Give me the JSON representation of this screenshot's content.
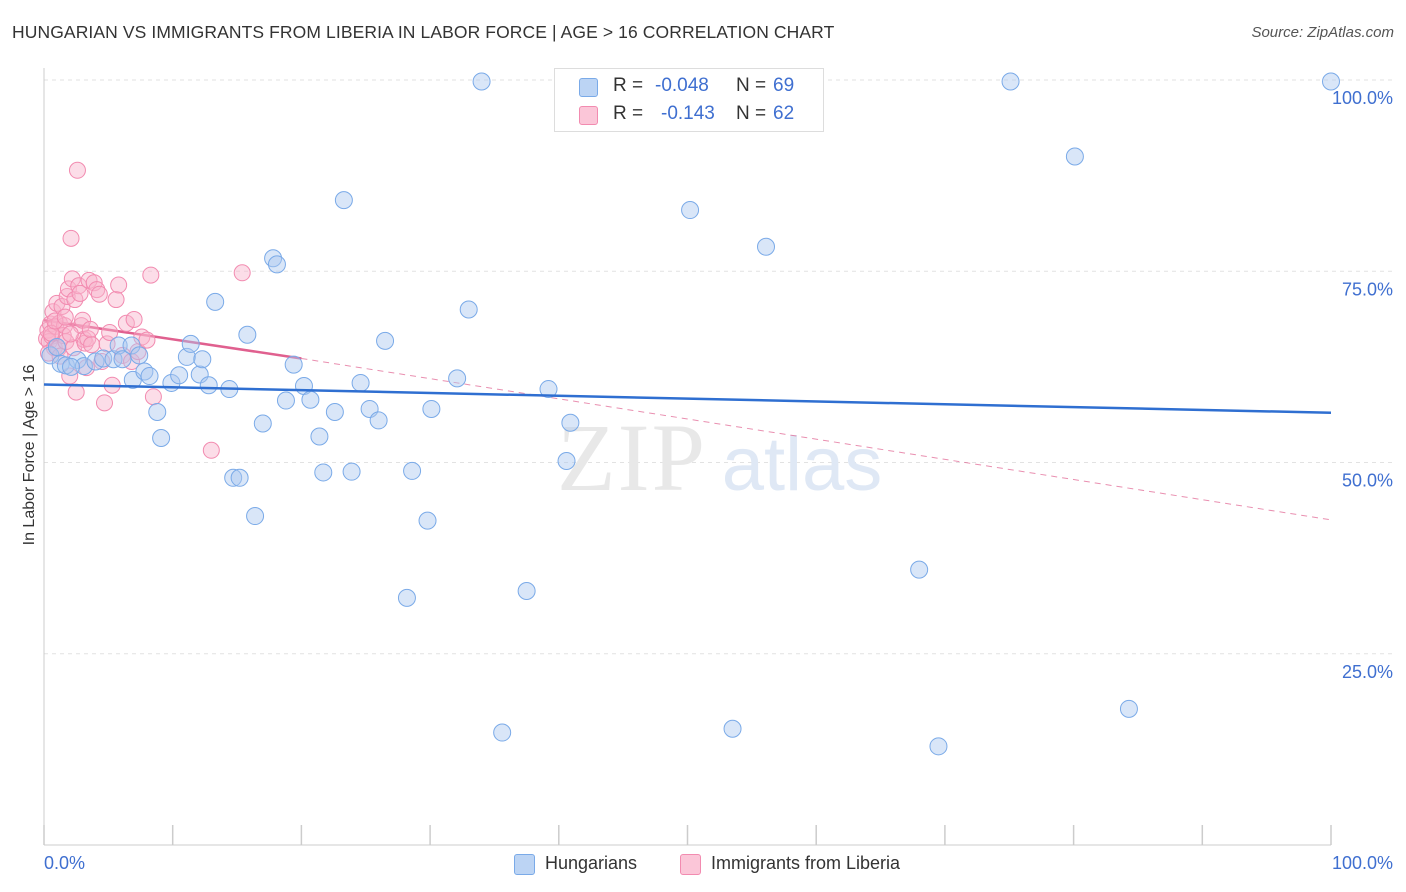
{
  "header": {
    "title": "HUNGARIAN VS IMMIGRANTS FROM LIBERIA IN LABOR FORCE | AGE > 16 CORRELATION CHART",
    "source": "Source: ZipAtlas.com"
  },
  "watermark": {
    "zip": "ZIP",
    "atlas": "atlas"
  },
  "legend": {
    "r_label": "R =",
    "n_label": "N =",
    "hungarians": {
      "r": "-0.048",
      "n": "69"
    },
    "liberia": {
      "r": "-0.143",
      "n": "62"
    }
  },
  "chart_data": {
    "type": "scatter",
    "xlabel": "",
    "ylabel": "In Labor Force | Age > 16",
    "xlim": [
      0,
      100
    ],
    "ylim": [
      0,
      100
    ],
    "x_tick_labels": {
      "left": "0.0%",
      "right": "100.0%"
    },
    "y_ticks": [
      {
        "value": 100,
        "label": "100.0%"
      },
      {
        "value": 75,
        "label": "75.0%"
      },
      {
        "value": 50,
        "label": "50.0%"
      },
      {
        "value": 25,
        "label": "25.0%"
      }
    ],
    "grid": true,
    "colors": {
      "hungarians": "#7aaae8",
      "hungarians_line": "#2f6fd1",
      "liberia": "#f28bb0",
      "liberia_line": "#e0608f",
      "tick_label": "#3f6fd0"
    },
    "series": [
      {
        "name": "Hungarians",
        "trend": {
          "x": [
            0,
            100
          ],
          "y": [
            60.2,
            56.5
          ]
        },
        "points": [
          [
            0.5,
            64.0
          ],
          [
            1.3,
            62.9
          ],
          [
            1.7,
            62.7
          ],
          [
            2.6,
            63.4
          ],
          [
            3.1,
            62.6
          ],
          [
            4.0,
            63.2
          ],
          [
            4.6,
            63.6
          ],
          [
            5.4,
            63.5
          ],
          [
            5.8,
            65.3
          ],
          [
            6.1,
            63.5
          ],
          [
            6.8,
            65.3
          ],
          [
            6.9,
            60.8
          ],
          [
            7.4,
            64.0
          ],
          [
            7.8,
            61.9
          ],
          [
            8.2,
            61.3
          ],
          [
            8.8,
            56.6
          ],
          [
            9.1,
            53.2
          ],
          [
            9.9,
            60.4
          ],
          [
            10.5,
            61.4
          ],
          [
            11.1,
            63.8
          ],
          [
            11.4,
            65.5
          ],
          [
            12.1,
            61.5
          ],
          [
            12.3,
            63.5
          ],
          [
            12.8,
            60.1
          ],
          [
            13.3,
            71.0
          ],
          [
            14.4,
            59.6
          ],
          [
            14.7,
            48.0
          ],
          [
            15.2,
            48.0
          ],
          [
            15.8,
            66.7
          ],
          [
            16.4,
            43.0
          ],
          [
            17.0,
            55.1
          ],
          [
            17.8,
            76.7
          ],
          [
            18.1,
            75.9
          ],
          [
            18.8,
            58.1
          ],
          [
            19.4,
            62.8
          ],
          [
            20.2,
            60.0
          ],
          [
            20.7,
            58.2
          ],
          [
            21.4,
            53.4
          ],
          [
            21.7,
            48.7
          ],
          [
            22.6,
            56.6
          ],
          [
            23.3,
            84.3
          ],
          [
            23.9,
            48.8
          ],
          [
            24.6,
            60.4
          ],
          [
            25.3,
            57.0
          ],
          [
            26.0,
            55.5
          ],
          [
            26.5,
            65.9
          ],
          [
            28.2,
            32.3
          ],
          [
            28.6,
            48.9
          ],
          [
            29.8,
            42.4
          ],
          [
            30.1,
            57.0
          ],
          [
            32.1,
            61.0
          ],
          [
            33.0,
            70.0
          ],
          [
            34.0,
            99.8
          ],
          [
            35.6,
            14.7
          ],
          [
            37.5,
            33.2
          ],
          [
            39.2,
            59.6
          ],
          [
            40.6,
            50.2
          ],
          [
            40.9,
            55.2
          ],
          [
            50.2,
            83.0
          ],
          [
            53.5,
            15.2
          ],
          [
            56.1,
            78.2
          ],
          [
            68.0,
            36.0
          ],
          [
            69.5,
            12.9
          ],
          [
            75.1,
            99.8
          ],
          [
            80.1,
            90.0
          ],
          [
            84.3,
            17.8
          ],
          [
            100.0,
            99.8
          ],
          [
            1.0,
            65.1
          ],
          [
            2.1,
            62.5
          ]
        ]
      },
      {
        "name": "Immigrants from Liberia",
        "trend": {
          "x": [
            0,
            20.0
          ],
          "y": [
            68.6,
            63.6
          ]
        },
        "trend_dashed": {
          "x": [
            20.0,
            100
          ],
          "y": [
            63.6,
            42.5
          ]
        },
        "points": [
          [
            0.2,
            66.2
          ],
          [
            0.3,
            67.3
          ],
          [
            0.4,
            65.8
          ],
          [
            0.5,
            68.1
          ],
          [
            0.6,
            66.5
          ],
          [
            0.7,
            69.7
          ],
          [
            0.8,
            65.0
          ],
          [
            0.9,
            67.8
          ],
          [
            1.0,
            70.8
          ],
          [
            1.1,
            64.9
          ],
          [
            1.2,
            68.2
          ],
          [
            1.4,
            70.4
          ],
          [
            1.5,
            66.6
          ],
          [
            1.6,
            67.9
          ],
          [
            1.7,
            65.8
          ],
          [
            1.8,
            71.7
          ],
          [
            1.9,
            72.7
          ],
          [
            2.0,
            61.3
          ],
          [
            2.1,
            79.3
          ],
          [
            2.2,
            74.0
          ],
          [
            2.3,
            65.0
          ],
          [
            2.4,
            71.3
          ],
          [
            2.5,
            59.2
          ],
          [
            2.6,
            88.2
          ],
          [
            2.7,
            73.1
          ],
          [
            2.8,
            72.1
          ],
          [
            2.9,
            67.9
          ],
          [
            3.0,
            68.6
          ],
          [
            3.1,
            66.1
          ],
          [
            3.2,
            65.6
          ],
          [
            3.3,
            62.4
          ],
          [
            3.4,
            66.2
          ],
          [
            3.5,
            73.8
          ],
          [
            3.6,
            67.4
          ],
          [
            3.7,
            65.4
          ],
          [
            3.9,
            73.5
          ],
          [
            4.1,
            72.6
          ],
          [
            4.3,
            72.0
          ],
          [
            4.5,
            63.2
          ],
          [
            4.7,
            57.8
          ],
          [
            4.9,
            65.5
          ],
          [
            5.1,
            67.0
          ],
          [
            5.3,
            60.1
          ],
          [
            5.6,
            71.3
          ],
          [
            5.8,
            73.2
          ],
          [
            6.1,
            64.0
          ],
          [
            6.4,
            68.2
          ],
          [
            6.8,
            63.2
          ],
          [
            7.0,
            68.7
          ],
          [
            7.3,
            64.5
          ],
          [
            7.6,
            66.4
          ],
          [
            8.0,
            66.0
          ],
          [
            8.3,
            74.5
          ],
          [
            8.5,
            58.6
          ],
          [
            13.0,
            51.6
          ],
          [
            15.4,
            74.8
          ],
          [
            0.35,
            64.3
          ],
          [
            0.55,
            66.9
          ],
          [
            0.85,
            68.5
          ],
          [
            1.25,
            63.9
          ],
          [
            1.65,
            69.0
          ],
          [
            2.05,
            66.8
          ]
        ]
      }
    ]
  },
  "bottom_legend": {
    "hungarians": "Hungarians",
    "liberia": "Immigrants from Liberia"
  }
}
